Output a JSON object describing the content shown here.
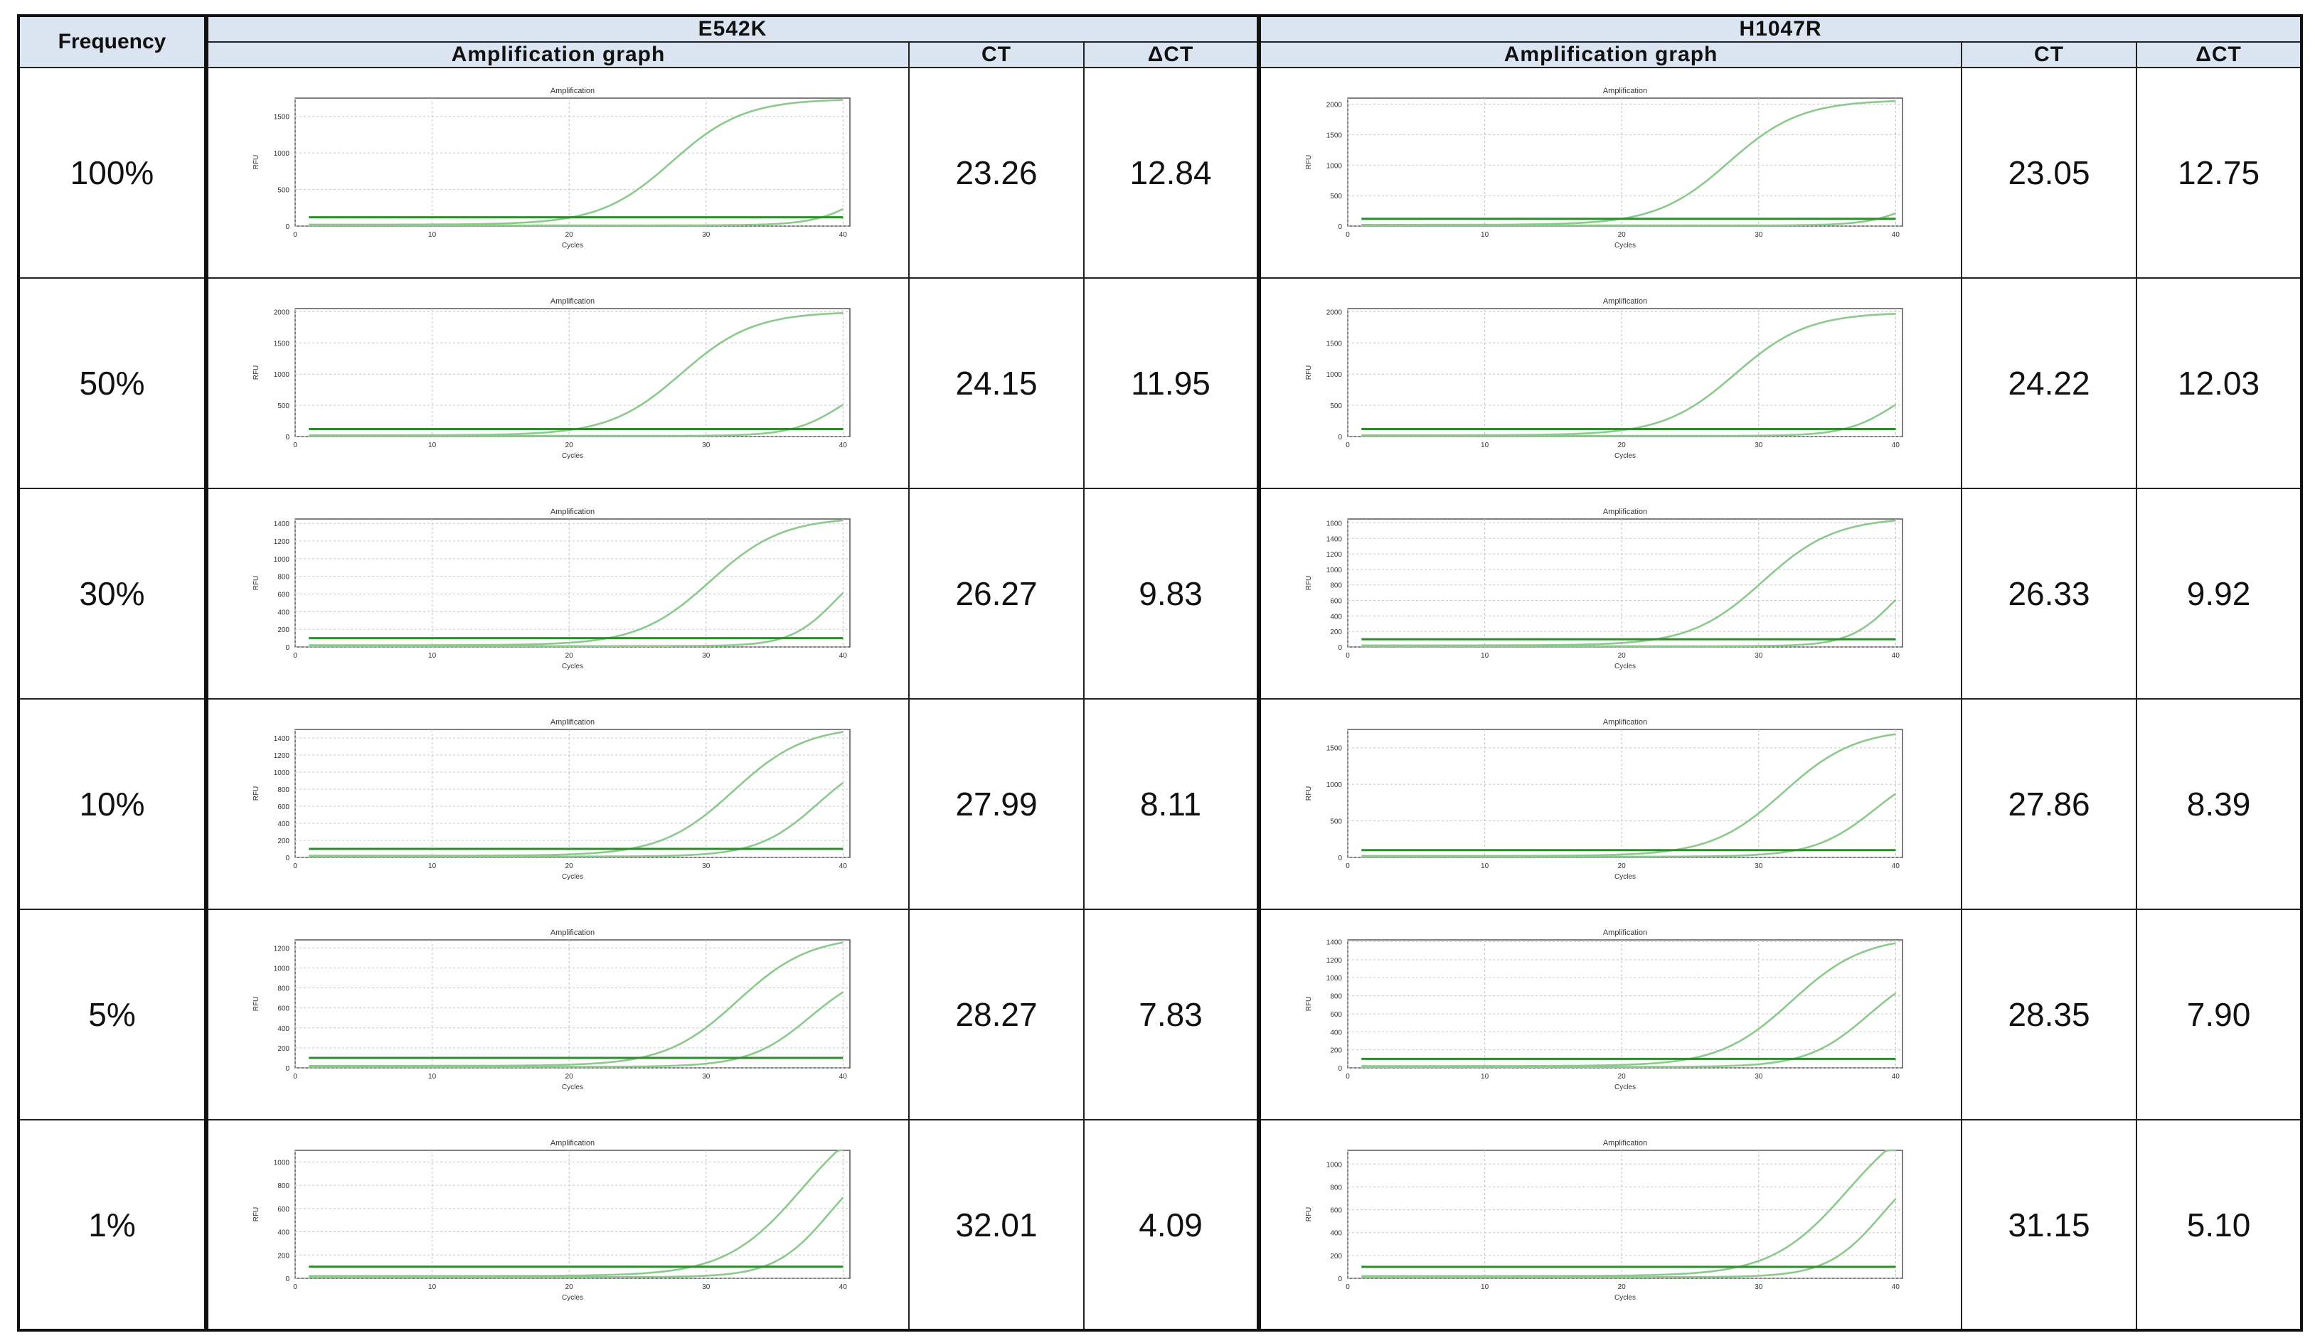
{
  "header": {
    "frequency_label": "Frequency",
    "groups": [
      {
        "name": "E542K",
        "graph_label": "Amplification graph",
        "ct_label": "CT",
        "dct_label": "ΔCT"
      },
      {
        "name": "H1047R",
        "graph_label": "Amplification graph",
        "ct_label": "CT",
        "dct_label": "ΔCT"
      }
    ]
  },
  "plot_labels": {
    "title": "Amplification",
    "xlabel": "Cycles",
    "ylabel": "RFU",
    "xticks": [
      "0",
      "10",
      "20",
      "30",
      "40"
    ]
  },
  "colors": {
    "header_bg": "#dbe5f1",
    "curve": "#8cc98c",
    "threshold": "#2e8b2e",
    "grid": "#c8c8c8"
  },
  "rows": [
    {
      "frequency": "100%",
      "e542k": {
        "ct": "23.26",
        "dct": "12.84"
      },
      "h1047r": {
        "ct": "23.05",
        "dct": "12.75"
      }
    },
    {
      "frequency": "50%",
      "e542k": {
        "ct": "24.15",
        "dct": "11.95"
      },
      "h1047r": {
        "ct": "24.22",
        "dct": "12.03"
      }
    },
    {
      "frequency": "30%",
      "e542k": {
        "ct": "26.27",
        "dct": "9.83"
      },
      "h1047r": {
        "ct": "26.33",
        "dct": "9.92"
      }
    },
    {
      "frequency": "10%",
      "e542k": {
        "ct": "27.99",
        "dct": "8.11"
      },
      "h1047r": {
        "ct": "27.86",
        "dct": "8.39"
      }
    },
    {
      "frequency": "5%",
      "e542k": {
        "ct": "28.27",
        "dct": "7.83"
      },
      "h1047r": {
        "ct": "28.35",
        "dct": "7.90"
      }
    },
    {
      "frequency": "1%",
      "e542k": {
        "ct": "32.01",
        "dct": "4.09"
      },
      "h1047r": {
        "ct": "31.15",
        "dct": "5.10"
      }
    }
  ],
  "chart_data": [
    {
      "type": "line",
      "id": "e542k-100",
      "yticks": [
        "0",
        "500",
        "1000",
        "1500"
      ],
      "ylim": [
        0,
        1750
      ],
      "threshold": 120,
      "series": [
        {
          "midpoint": 27.5,
          "slope": 0.38,
          "plateau": 1720,
          "baseline": 20
        },
        {
          "midpoint": 42,
          "slope": 0.55,
          "plateau": 900,
          "baseline": 10
        }
      ]
    },
    {
      "type": "line",
      "id": "h1047r-100",
      "yticks": [
        "0",
        "500",
        "1000",
        "1500",
        "2000"
      ],
      "ylim": [
        0,
        2100
      ],
      "threshold": 120,
      "series": [
        {
          "midpoint": 27.8,
          "slope": 0.38,
          "plateau": 2050,
          "baseline": 20
        },
        {
          "midpoint": 42.5,
          "slope": 0.55,
          "plateau": 1000,
          "baseline": 10
        }
      ]
    },
    {
      "type": "line",
      "id": "e542k-50",
      "yticks": [
        "0",
        "500",
        "1000",
        "1500",
        "2000"
      ],
      "ylim": [
        0,
        2050
      ],
      "threshold": 120,
      "series": [
        {
          "midpoint": 28.2,
          "slope": 0.38,
          "plateau": 1980,
          "baseline": 20
        },
        {
          "midpoint": 40,
          "slope": 0.55,
          "plateau": 1000,
          "baseline": 10
        }
      ]
    },
    {
      "type": "line",
      "id": "h1047r-50",
      "yticks": [
        "0",
        "500",
        "1000",
        "1500",
        "2000"
      ],
      "ylim": [
        0,
        2050
      ],
      "threshold": 120,
      "series": [
        {
          "midpoint": 28.3,
          "slope": 0.38,
          "plateau": 1970,
          "baseline": 20
        },
        {
          "midpoint": 40,
          "slope": 0.55,
          "plateau": 1000,
          "baseline": 10
        }
      ]
    },
    {
      "type": "line",
      "id": "e542k-30",
      "yticks": [
        "0",
        "200",
        "400",
        "600",
        "800",
        "1000",
        "1200",
        "1400"
      ],
      "ylim": [
        0,
        1450
      ],
      "threshold": 100,
      "series": [
        {
          "midpoint": 30.3,
          "slope": 0.38,
          "plateau": 1450,
          "baseline": 20
        },
        {
          "midpoint": 39.5,
          "slope": 0.6,
          "plateau": 1050,
          "baseline": 10
        }
      ]
    },
    {
      "type": "line",
      "id": "h1047r-30",
      "yticks": [
        "0",
        "200",
        "400",
        "600",
        "800",
        "1000",
        "1200",
        "1400",
        "1600"
      ],
      "ylim": [
        0,
        1650
      ],
      "threshold": 100,
      "series": [
        {
          "midpoint": 30.3,
          "slope": 0.38,
          "plateau": 1650,
          "baseline": 20
        },
        {
          "midpoint": 40,
          "slope": 0.6,
          "plateau": 1200,
          "baseline": 10
        }
      ]
    },
    {
      "type": "line",
      "id": "e542k-10",
      "yticks": [
        "0",
        "200",
        "400",
        "600",
        "800",
        "1000",
        "1200",
        "1400"
      ],
      "ylim": [
        0,
        1500
      ],
      "threshold": 100,
      "series": [
        {
          "midpoint": 32,
          "slope": 0.38,
          "plateau": 1520,
          "baseline": 20
        },
        {
          "midpoint": 38.2,
          "slope": 0.45,
          "plateau": 1250,
          "baseline": 10
        }
      ]
    },
    {
      "type": "line",
      "id": "h1047r-10",
      "yticks": [
        "0",
        "500",
        "1000",
        "1500"
      ],
      "ylim": [
        0,
        1750
      ],
      "threshold": 100,
      "series": [
        {
          "midpoint": 31.8,
          "slope": 0.38,
          "plateau": 1740,
          "baseline": 20
        },
        {
          "midpoint": 38.5,
          "slope": 0.45,
          "plateau": 1300,
          "baseline": 10
        }
      ]
    },
    {
      "type": "line",
      "id": "e542k-5",
      "yticks": [
        "0",
        "200",
        "400",
        "600",
        "800",
        "1000",
        "1200"
      ],
      "ylim": [
        0,
        1280
      ],
      "threshold": 100,
      "series": [
        {
          "midpoint": 32.3,
          "slope": 0.38,
          "plateau": 1300,
          "baseline": 20
        },
        {
          "midpoint": 37.6,
          "slope": 0.45,
          "plateau": 1000,
          "baseline": 10
        }
      ]
    },
    {
      "type": "line",
      "id": "h1047r-5",
      "yticks": [
        "0",
        "200",
        "400",
        "600",
        "800",
        "1000",
        "1200",
        "1400"
      ],
      "ylim": [
        0,
        1420
      ],
      "threshold": 100,
      "series": [
        {
          "midpoint": 32.4,
          "slope": 0.38,
          "plateau": 1440,
          "baseline": 20
        },
        {
          "midpoint": 38,
          "slope": 0.45,
          "plateau": 1150,
          "baseline": 10
        }
      ]
    },
    {
      "type": "line",
      "id": "e542k-1",
      "yticks": [
        "0",
        "200",
        "400",
        "600",
        "800",
        "1000"
      ],
      "ylim": [
        0,
        1100
      ],
      "threshold": 100,
      "series": [
        {
          "midpoint": 37,
          "slope": 0.36,
          "plateau": 1500,
          "baseline": 20
        },
        {
          "midpoint": 39,
          "slope": 0.5,
          "plateau": 1100,
          "baseline": 10
        }
      ]
    },
    {
      "type": "line",
      "id": "h1047r-1",
      "yticks": [
        "0",
        "200",
        "400",
        "600",
        "800",
        "1000"
      ],
      "ylim": [
        0,
        1120
      ],
      "threshold": 100,
      "series": [
        {
          "midpoint": 36.5,
          "slope": 0.36,
          "plateau": 1500,
          "baseline": 20
        },
        {
          "midpoint": 39,
          "slope": 0.5,
          "plateau": 1100,
          "baseline": 10
        }
      ]
    }
  ]
}
